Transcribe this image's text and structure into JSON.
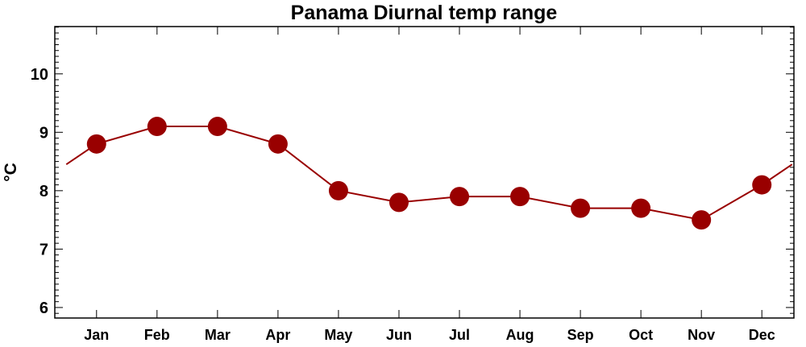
{
  "chart_data": {
    "type": "line",
    "title": "Panama Diurnal temp range",
    "xlabel": "",
    "ylabel": "°C",
    "categories": [
      "Jan",
      "Feb",
      "Mar",
      "Apr",
      "May",
      "Jun",
      "Jul",
      "Aug",
      "Sep",
      "Oct",
      "Nov",
      "Dec"
    ],
    "series": [
      {
        "name": "Diurnal temp range",
        "values": [
          8.8,
          9.1,
          9.1,
          8.8,
          8.0,
          7.8,
          7.9,
          7.9,
          7.7,
          7.7,
          7.5,
          8.1
        ],
        "color": "#990000"
      }
    ],
    "ylim": [
      5.82,
      10.81
    ],
    "xlim": [
      0.31,
      12.53
    ],
    "yticks": [
      6,
      7,
      8,
      9,
      10
    ],
    "ytick_labels": [
      "6",
      "7",
      "8",
      "9",
      "10"
    ],
    "cyclic_wrap": true,
    "grid": false,
    "legend": "none"
  }
}
